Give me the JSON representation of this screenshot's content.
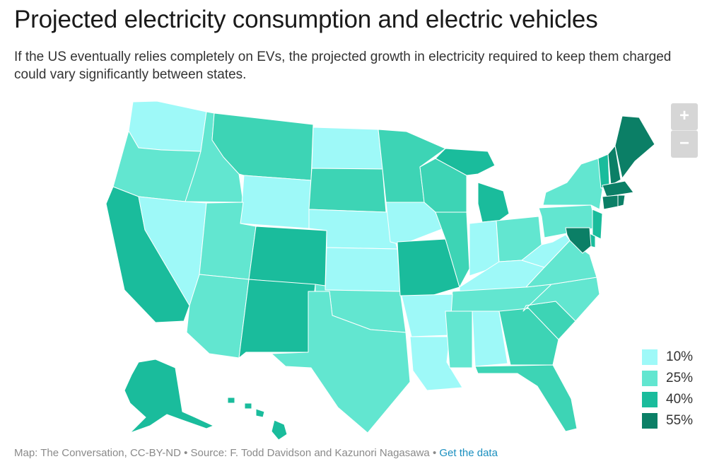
{
  "title": "Projected electricity consumption and electric vehicles",
  "subtitle": "If the US eventually relies completely on EVs, the projected growth in electricity required to keep them charged could vary significantly between states.",
  "zoom": {
    "in_label": "+",
    "out_label": "−"
  },
  "legend": [
    {
      "label": "10%",
      "color": "#9ef9f8"
    },
    {
      "label": "25%",
      "color": "#62e6d0"
    },
    {
      "label": "40%",
      "color": "#1abc9c"
    },
    {
      "label": "55%",
      "color": "#0b7f66"
    }
  ],
  "source": {
    "text": "Map: The Conversation, CC-BY-ND • Source: F. Todd Davidson and Kazunori Nagasawa • ",
    "link": "Get the data"
  },
  "colors": {
    "lv10": "#9ef9f8",
    "lv25": "#62e6d0",
    "lv40mid": "#3dd4b5",
    "lv40": "#1abc9c",
    "lv55": "#0b7f66"
  }
}
